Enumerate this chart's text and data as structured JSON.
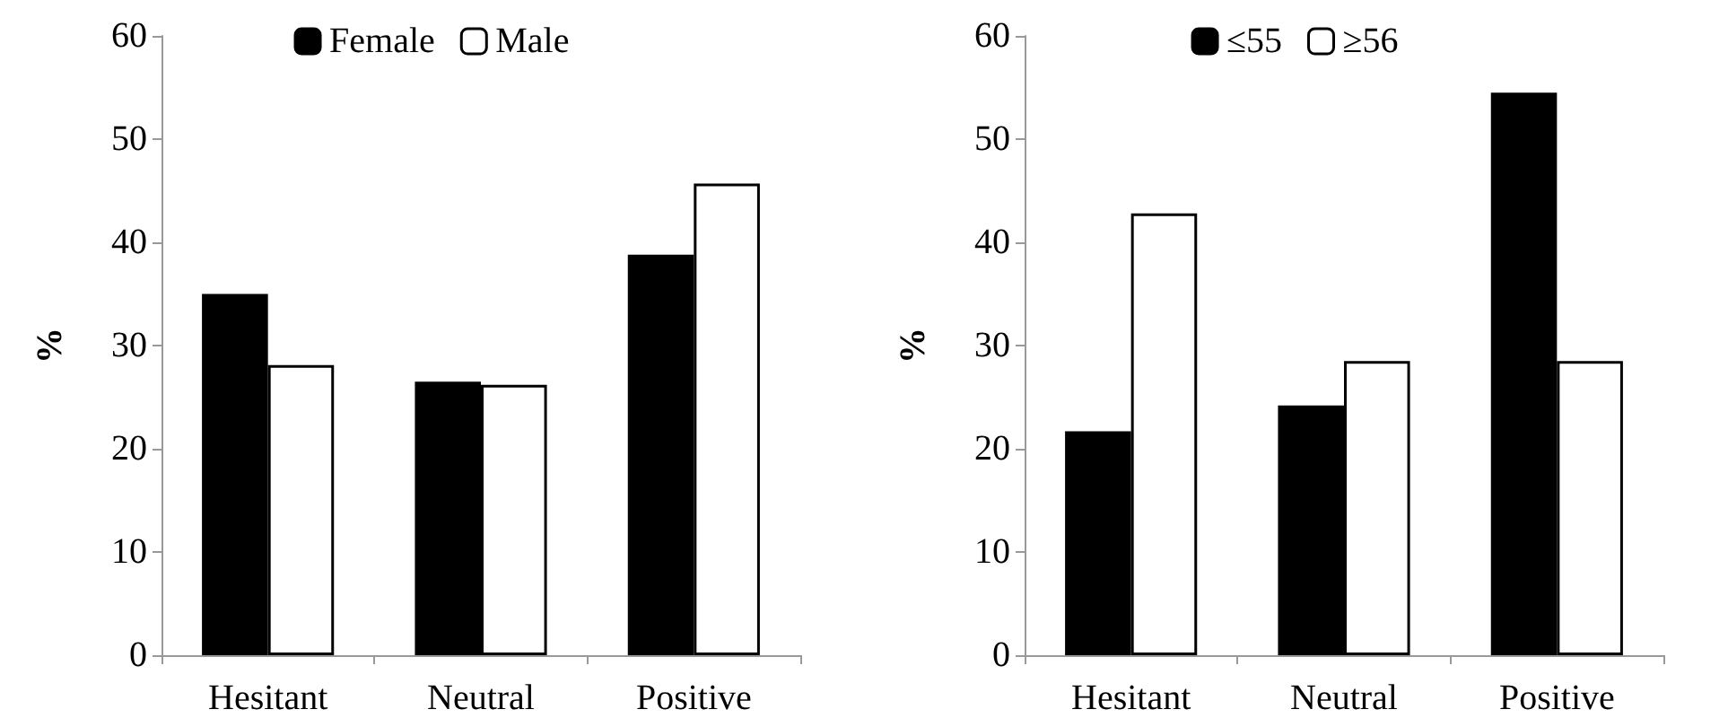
{
  "chart_data": [
    {
      "type": "bar",
      "ylabel": "%",
      "categories": [
        "Hesitant",
        "Neutral",
        "Positive"
      ],
      "series": [
        {
          "name": "Female",
          "color": "#000000",
          "values": [
            35,
            26.5,
            38.8
          ]
        },
        {
          "name": "Male",
          "color": "#ffffff",
          "values": [
            28.1,
            26.2,
            45.7
          ]
        }
      ],
      "ylim": [
        0,
        60
      ],
      "yticks": [
        0,
        10,
        20,
        30,
        40,
        50,
        60
      ],
      "grid": false,
      "legend": "top"
    },
    {
      "type": "bar",
      "ylabel": "%",
      "categories": [
        "Hesitant",
        "Neutral",
        "Positive"
      ],
      "series": [
        {
          "name": "≤55",
          "color": "#000000",
          "values": [
            21.7,
            24.2,
            54.5
          ]
        },
        {
          "name": "≥56",
          "color": "#ffffff",
          "values": [
            42.8,
            28.5,
            28.5
          ]
        }
      ],
      "ylim": [
        0,
        60
      ],
      "yticks": [
        0,
        10,
        20,
        30,
        40,
        50,
        60
      ],
      "grid": false,
      "legend": "top"
    }
  ]
}
